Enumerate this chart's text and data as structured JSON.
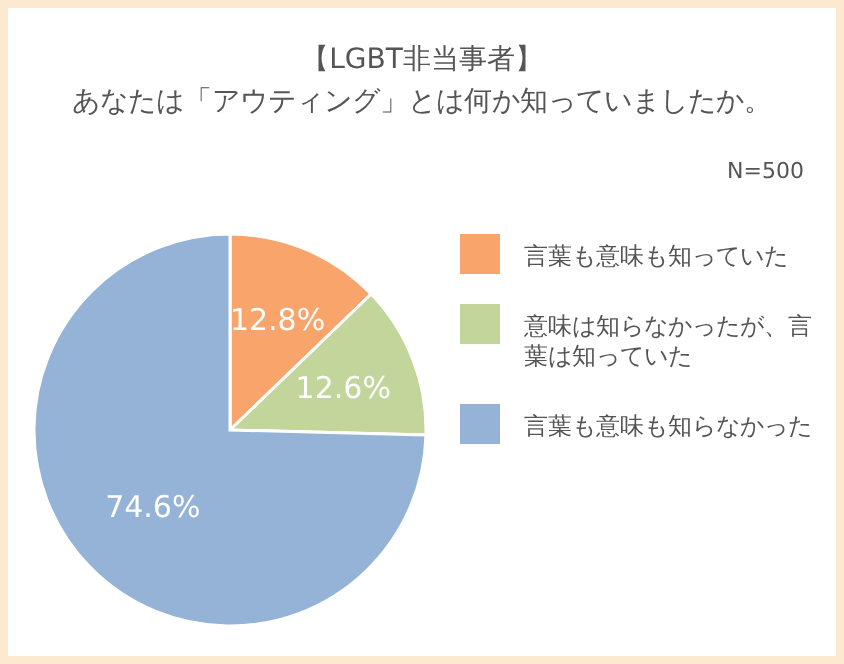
{
  "chart_data": {
    "type": "pie",
    "title": "【LGBT非当事者】",
    "subtitle": "あなたは「アウティング」とは何か知っていましたか。",
    "annotations": [
      "N=500"
    ],
    "categories": [
      "言葉も意味も知っていた",
      "意味は知らなかったが、言葉は知っていた",
      "言葉も意味も知らなかった"
    ],
    "values": [
      12.8,
      12.6,
      74.6
    ],
    "colors": [
      "#f9a46b",
      "#c2d59b",
      "#94b3d6"
    ],
    "value_labels": [
      "12.8%",
      "12.6%",
      "74.6%"
    ],
    "legend": "right"
  }
}
